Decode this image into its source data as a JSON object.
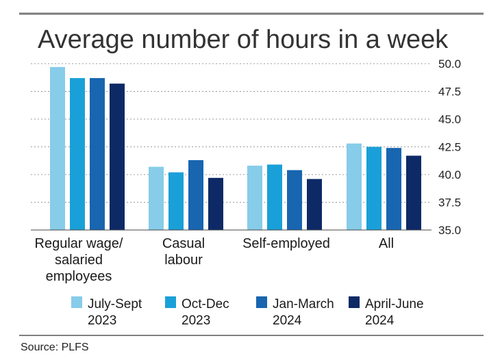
{
  "chart_data": {
    "type": "bar",
    "title": "Average number of hours in a week",
    "xlabel": "",
    "ylabel": "",
    "ylim": [
      35.0,
      50.0
    ],
    "yticks": [
      "50.0",
      "47.5",
      "45.0",
      "42.5",
      "40.0",
      "37.5",
      "35.0"
    ],
    "y_axis_side": "right",
    "grid": "horizontal-dotted",
    "legend_position": "bottom",
    "categories": [
      [
        "Regular wage/",
        "salaried",
        "employees"
      ],
      [
        "Casual",
        "labour"
      ],
      [
        "Self-employed"
      ],
      [
        "All"
      ]
    ],
    "series": [
      {
        "name": [
          "July-Sept",
          "2023"
        ],
        "color": "#87cce9",
        "values": [
          49.7,
          40.7,
          40.8,
          42.8
        ]
      },
      {
        "name": [
          "Oct-Dec",
          "2023"
        ],
        "color": "#1aa0d8",
        "values": [
          48.7,
          40.2,
          40.9,
          42.5
        ]
      },
      {
        "name": [
          "Jan-March",
          "2024"
        ],
        "color": "#1865b0",
        "values": [
          48.7,
          41.3,
          40.4,
          42.4
        ]
      },
      {
        "name": [
          "April-June",
          "2024"
        ],
        "color": "#0d2a66",
        "values": [
          48.2,
          39.7,
          39.6,
          41.7
        ]
      }
    ],
    "source": "Source: PLFS"
  }
}
